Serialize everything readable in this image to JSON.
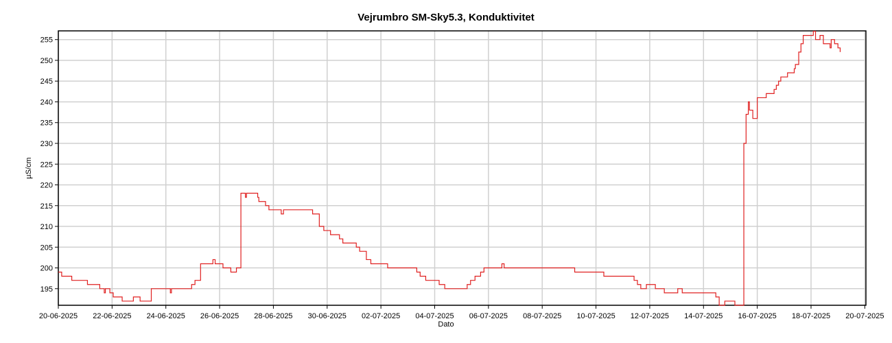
{
  "chart_data": {
    "type": "line",
    "title": "Vejrumbro SM-Sky5.3, Konduktivitet",
    "x_label": "Dato",
    "y_label": "µS/cm",
    "line_shape": "step",
    "grid": true,
    "xlim": [
      "2025-06-20 00:00",
      "2025-07-20 01:00"
    ],
    "xticks": [
      {
        "value": "2025-06-20 00:00",
        "label": "20-06-2025"
      },
      {
        "value": "2025-06-22 00:00",
        "label": "22-06-2025"
      },
      {
        "value": "2025-06-24 00:00",
        "label": "24-06-2025"
      },
      {
        "value": "2025-06-26 00:00",
        "label": "26-06-2025"
      },
      {
        "value": "2025-06-28 00:00",
        "label": "28-06-2025"
      },
      {
        "value": "2025-06-30 00:00",
        "label": "30-06-2025"
      },
      {
        "value": "2025-07-02 00:00",
        "label": "02-07-2025"
      },
      {
        "value": "2025-07-04 00:00",
        "label": "04-07-2025"
      },
      {
        "value": "2025-07-06 00:00",
        "label": "06-07-2025"
      },
      {
        "value": "2025-07-08 00:00",
        "label": "08-07-2025"
      },
      {
        "value": "2025-07-10 00:00",
        "label": "10-07-2025"
      },
      {
        "value": "2025-07-12 00:00",
        "label": "12-07-2025"
      },
      {
        "value": "2025-07-14 00:00",
        "label": "14-07-2025"
      },
      {
        "value": "2025-07-16 00:00",
        "label": "16-07-2025"
      },
      {
        "value": "2025-07-18 00:00",
        "label": "18-07-2025"
      },
      {
        "value": "2025-07-20 00:00",
        "label": "20-07-2025"
      }
    ],
    "ylim": [
      191,
      257.1
    ],
    "yticks": [
      195,
      200,
      205,
      210,
      215,
      220,
      225,
      230,
      235,
      240,
      245,
      250,
      255
    ],
    "x": [
      "2025-06-20 00:00",
      "2025-06-20 03:00",
      "2025-06-20 12:00",
      "2025-06-21 02:00",
      "2025-06-21 13:00",
      "2025-06-21 17:00",
      "2025-06-21 18:00",
      "2025-06-21 22:00",
      "2025-06-22 01:00",
      "2025-06-22 09:00",
      "2025-06-22 19:00",
      "2025-06-23 01:00",
      "2025-06-23 11:00",
      "2025-06-24 04:00",
      "2025-06-24 05:00",
      "2025-06-24 23:00",
      "2025-06-25 02:00",
      "2025-06-25 07:00",
      "2025-06-25 18:00",
      "2025-06-25 20:00",
      "2025-06-26 03:00",
      "2025-06-26 10:00",
      "2025-06-26 15:00",
      "2025-06-26 19:00",
      "2025-06-26 23:00",
      "2025-06-27 00:00",
      "2025-06-27 10:00",
      "2025-06-27 11:00",
      "2025-06-27 17:00",
      "2025-06-27 20:00",
      "2025-06-28 07:00",
      "2025-06-28 09:00",
      "2025-06-29 11:00",
      "2025-06-29 17:00",
      "2025-06-29 21:00",
      "2025-06-30 03:00",
      "2025-06-30 11:00",
      "2025-06-30 14:00",
      "2025-07-01 02:00",
      "2025-07-01 05:00",
      "2025-07-01 11:00",
      "2025-07-01 15:00",
      "2025-07-02 06:00",
      "2025-07-03 08:00",
      "2025-07-03 11:00",
      "2025-07-03 16:00",
      "2025-07-04 04:00",
      "2025-07-04 09:00",
      "2025-07-05 05:00",
      "2025-07-05 08:00",
      "2025-07-05 12:00",
      "2025-07-05 17:00",
      "2025-07-05 20:00",
      "2025-07-06 12:00",
      "2025-07-06 14:00",
      "2025-07-09 05:00",
      "2025-07-10 07:00",
      "2025-07-11 10:00",
      "2025-07-11 13:00",
      "2025-07-11 16:00",
      "2025-07-11 21:00",
      "2025-07-12 05:00",
      "2025-07-12 13:00",
      "2025-07-13 01:00",
      "2025-07-13 05:00",
      "2025-07-14 11:00",
      "2025-07-14 14:00",
      "2025-07-14 19:00",
      "2025-07-15 04:00",
      "2025-07-15 12:00",
      "2025-07-15 14:00",
      "2025-07-15 16:00",
      "2025-07-15 17:00",
      "2025-07-15 20:00",
      "2025-07-16 00:00",
      "2025-07-16 08:00",
      "2025-07-16 15:00",
      "2025-07-16 17:00",
      "2025-07-16 19:00",
      "2025-07-16 21:00",
      "2025-07-17 03:00",
      "2025-07-17 09:00",
      "2025-07-17 10:00",
      "2025-07-17 13:00",
      "2025-07-17 15:00",
      "2025-07-17 17:00",
      "2025-07-18 02:00",
      "2025-07-18 04:00",
      "2025-07-18 08:00",
      "2025-07-18 11:00",
      "2025-07-18 17:00",
      "2025-07-18 18:00",
      "2025-07-18 21:00",
      "2025-07-19 00:00",
      "2025-07-19 02:00"
    ],
    "series": [
      {
        "name": "Konduktivitet",
        "color": "#e02020",
        "values": [
          199,
          198,
          197,
          196,
          195,
          194,
          195,
          194,
          193,
          192,
          193,
          192,
          195,
          194,
          195,
          196,
          197,
          201,
          202,
          201,
          200,
          199,
          200,
          218,
          217,
          218,
          217,
          216,
          215,
          214,
          213,
          214,
          213,
          210,
          209,
          208,
          207,
          206,
          205,
          204,
          202,
          201,
          200,
          199,
          198,
          197,
          196,
          195,
          196,
          197,
          198,
          199,
          200,
          201,
          200,
          199,
          198,
          197,
          196,
          195,
          196,
          195,
          194,
          195,
          194,
          193,
          191,
          192,
          191,
          230,
          237,
          240,
          238,
          236,
          241,
          242,
          243,
          244,
          245,
          246,
          247,
          248,
          249,
          252,
          254,
          256,
          257,
          255,
          256,
          254,
          253,
          255,
          254,
          253,
          252
        ]
      }
    ]
  }
}
